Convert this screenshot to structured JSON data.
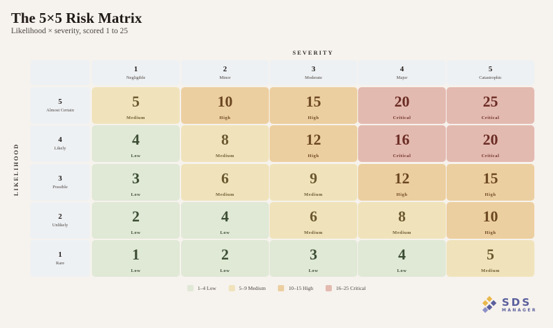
{
  "header": {
    "title": "The 5×5 Risk Matrix",
    "subtitle": "Likelihood × severity, scored 1 to 25"
  },
  "chart_data": {
    "type": "heatmap",
    "xlabel": "SEVERITY",
    "ylabel": "LIKELIHOOD",
    "severity": [
      {
        "num": "1",
        "label": "Negligible"
      },
      {
        "num": "2",
        "label": "Minor"
      },
      {
        "num": "3",
        "label": "Moderate"
      },
      {
        "num": "4",
        "label": "Major"
      },
      {
        "num": "5",
        "label": "Catastrophic"
      }
    ],
    "likelihood": [
      {
        "num": "5",
        "label": "Almost Certain"
      },
      {
        "num": "4",
        "label": "Likely"
      },
      {
        "num": "3",
        "label": "Possible"
      },
      {
        "num": "2",
        "label": "Unlikely"
      },
      {
        "num": "1",
        "label": "Rare"
      }
    ],
    "rows": [
      [
        {
          "score": "5",
          "level": "Medium"
        },
        {
          "score": "10",
          "level": "High"
        },
        {
          "score": "15",
          "level": "High"
        },
        {
          "score": "20",
          "level": "Critical"
        },
        {
          "score": "25",
          "level": "Critical"
        }
      ],
      [
        {
          "score": "4",
          "level": "Low"
        },
        {
          "score": "8",
          "level": "Medium"
        },
        {
          "score": "12",
          "level": "High"
        },
        {
          "score": "16",
          "level": "Critical"
        },
        {
          "score": "20",
          "level": "Critical"
        }
      ],
      [
        {
          "score": "3",
          "level": "Low"
        },
        {
          "score": "6",
          "level": "Medium"
        },
        {
          "score": "9",
          "level": "Medium"
        },
        {
          "score": "12",
          "level": "High"
        },
        {
          "score": "15",
          "level": "High"
        }
      ],
      [
        {
          "score": "2",
          "level": "Low"
        },
        {
          "score": "4",
          "level": "Low"
        },
        {
          "score": "6",
          "level": "Medium"
        },
        {
          "score": "8",
          "level": "Medium"
        },
        {
          "score": "10",
          "level": "High"
        }
      ],
      [
        {
          "score": "1",
          "level": "Low"
        },
        {
          "score": "2",
          "level": "Low"
        },
        {
          "score": "3",
          "level": "Low"
        },
        {
          "score": "4",
          "level": "Low"
        },
        {
          "score": "5",
          "level": "Medium"
        }
      ]
    ],
    "levels": {
      "Low": {
        "fill": "#e0e8d6",
        "text": "#3b4d33"
      },
      "Medium": {
        "fill": "#f0e3bb",
        "text": "#6b5830"
      },
      "High": {
        "fill": "#eccfa0",
        "text": "#6b4622"
      },
      "Critical": {
        "fill": "#e3bab0",
        "text": "#6b2c24"
      }
    },
    "legend": [
      {
        "label": "1–4 Low",
        "color": "#e0e8d6"
      },
      {
        "label": "5–9 Medium",
        "color": "#f0e3bb"
      },
      {
        "label": "10–15 High",
        "color": "#eccfa0"
      },
      {
        "label": "16–25 Critical",
        "color": "#e3bab0"
      }
    ]
  },
  "logo": {
    "name": "SDS",
    "tagline": "MANAGER",
    "color": "#5a5f9c",
    "accent": "#e8b84a"
  }
}
